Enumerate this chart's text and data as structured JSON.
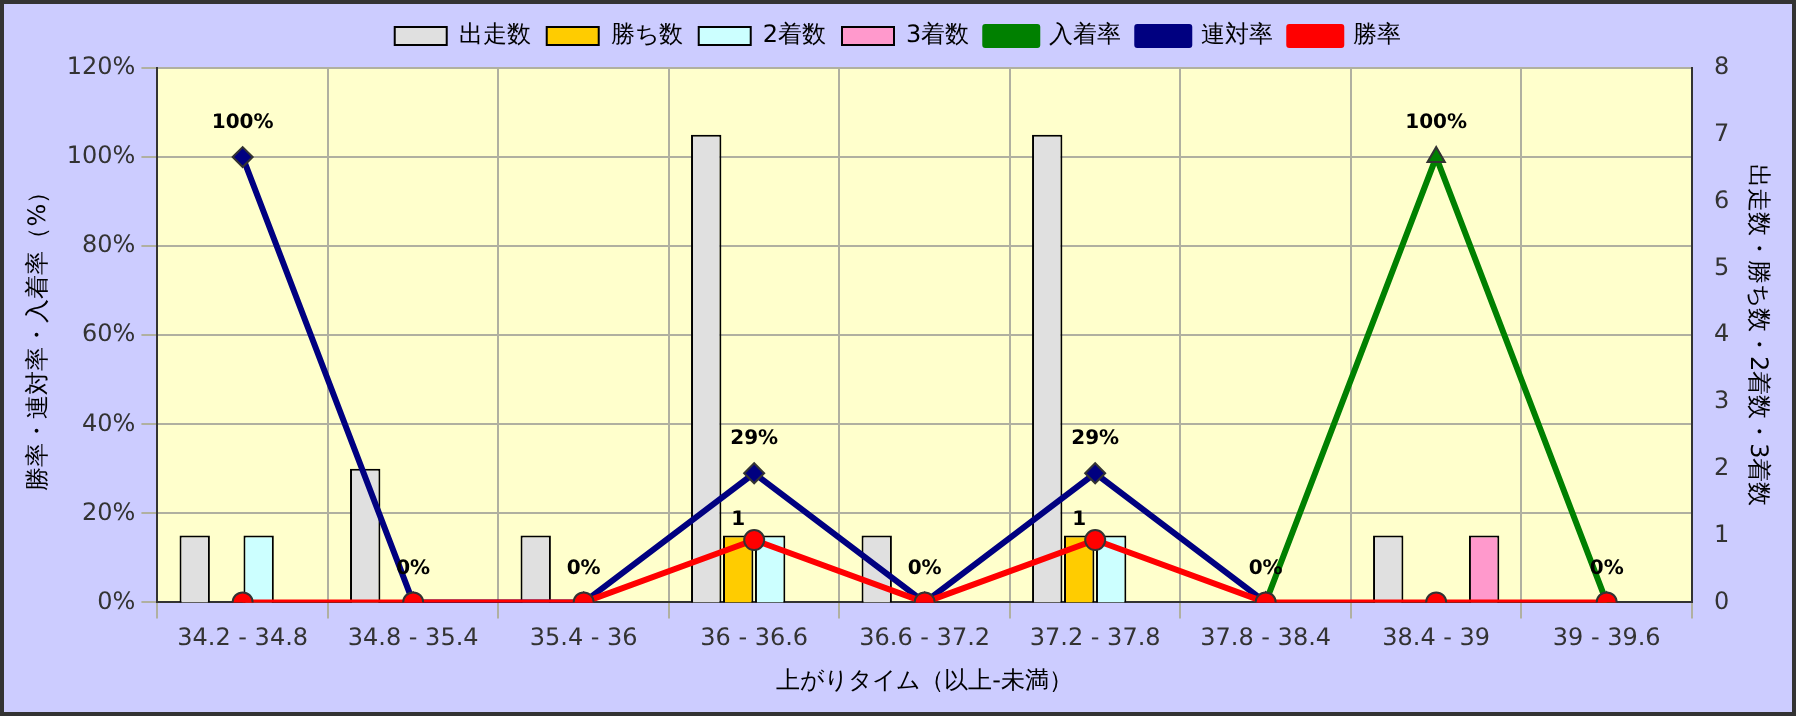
{
  "chart_data": {
    "type": "bar",
    "xlabel": "上がりタイム（以上-未満）",
    "ylabel": "勝率・連対率・入着率（%）",
    "y2label": "出走数・勝ち数・2着数・3着数",
    "categories": [
      "34.2 - 34.8",
      "34.8 - 35.4",
      "35.4 - 36",
      "36 - 36.6",
      "36.6 - 37.2",
      "37.2 - 37.8",
      "37.8 - 38.4",
      "38.4 - 39",
      "39 - 39.6"
    ],
    "series": [
      {
        "name": "出走数",
        "axis": "y2",
        "color": "#e0e0e0",
        "values": [
          1,
          2,
          1,
          7,
          1,
          7,
          0,
          1,
          0
        ]
      },
      {
        "name": "勝ち数",
        "axis": "y2",
        "color": "#ffcc00",
        "values": [
          0,
          0,
          0,
          1,
          0,
          1,
          0,
          0,
          0
        ],
        "value_labels": [
          null,
          null,
          null,
          "1",
          null,
          "1",
          null,
          null,
          null
        ]
      },
      {
        "name": "2着数",
        "axis": "y2",
        "color": "#ccffff",
        "values": [
          1,
          0,
          0,
          1,
          0,
          1,
          0,
          0,
          0
        ]
      },
      {
        "name": "3着数",
        "axis": "y2",
        "color": "#ff99cc",
        "values": [
          0,
          0,
          0,
          0,
          0,
          0,
          0,
          1,
          0
        ]
      },
      {
        "name": "入着率",
        "type": "line",
        "marker": "triangle",
        "color": "#008000",
        "values": [
          null,
          null,
          null,
          null,
          null,
          null,
          0,
          100,
          0
        ],
        "value_labels": [
          null,
          null,
          null,
          null,
          null,
          null,
          "0%",
          "100%",
          "0%"
        ]
      },
      {
        "name": "連対率",
        "type": "line",
        "marker": "diamond",
        "color": "#000080",
        "values": [
          100,
          0,
          0,
          29,
          0,
          29,
          0,
          null,
          null
        ],
        "value_labels": [
          "100%",
          "0%",
          "0%",
          "29%",
          "0%",
          "29%",
          null,
          null,
          null
        ]
      },
      {
        "name": "勝率",
        "type": "line",
        "marker": "circle",
        "color": "#ff0000",
        "values": [
          0,
          0,
          0,
          14,
          0,
          14,
          0,
          0,
          0
        ]
      }
    ],
    "ylim": [
      0,
      120
    ],
    "yticks": [
      {
        "value": 0,
        "label": "0%"
      },
      {
        "value": 20,
        "label": "20%"
      },
      {
        "value": 40,
        "label": "40%"
      },
      {
        "value": 60,
        "label": "60%"
      },
      {
        "value": 80,
        "label": "80%"
      },
      {
        "value": 100,
        "label": "100%"
      },
      {
        "value": 120,
        "label": "120%"
      }
    ],
    "y2lim": [
      0,
      8
    ],
    "y2ticks": [
      0,
      1,
      2,
      3,
      4,
      5,
      6,
      7,
      8
    ],
    "grid": true,
    "legend": "top",
    "line_style": "solid"
  }
}
